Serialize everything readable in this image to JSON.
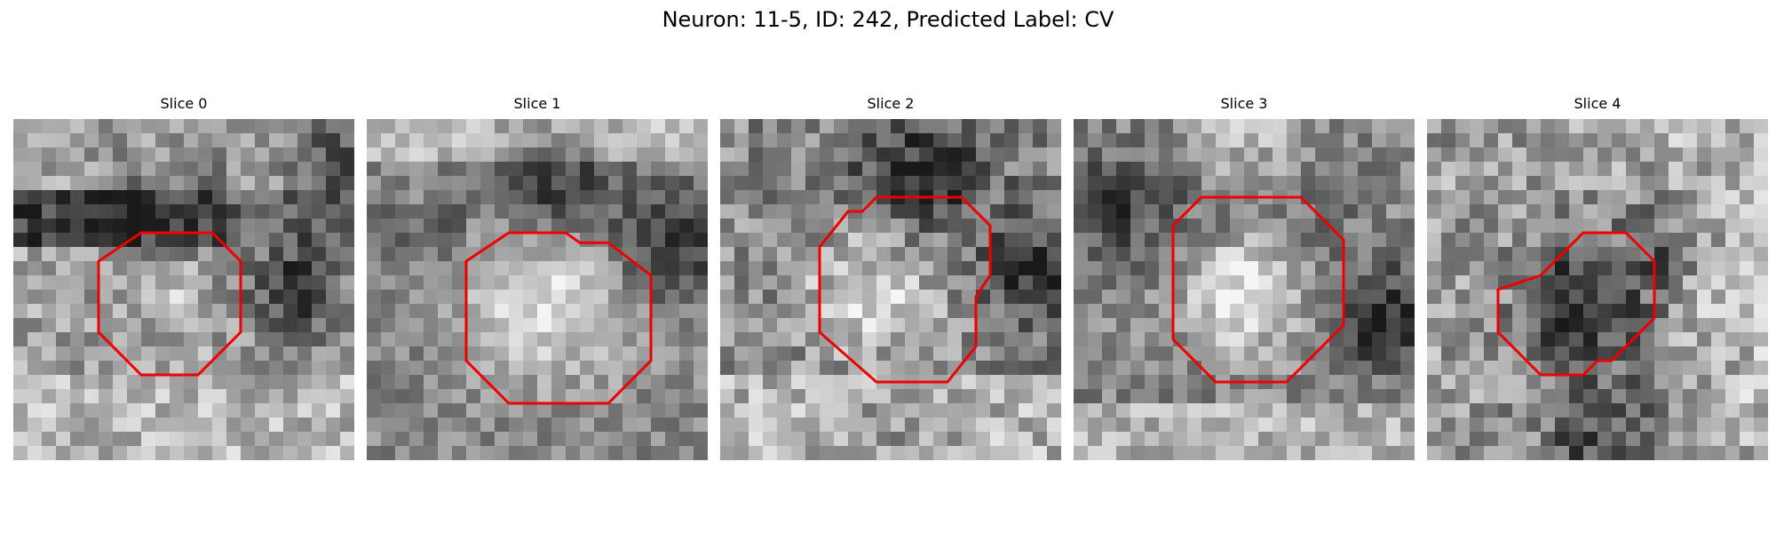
{
  "figure": {
    "title": "Neuron: 11-5, ID: 242, Predicted Label: CV",
    "colors": {
      "contour": "#ee0000",
      "background": "#ffffff"
    },
    "colormap": "gray",
    "slices": [
      {
        "label": "Slice 0"
      },
      {
        "label": "Slice 1"
      },
      {
        "label": "Slice 2"
      },
      {
        "label": "Slice 3"
      },
      {
        "label": "Slice 4"
      }
    ]
  }
}
